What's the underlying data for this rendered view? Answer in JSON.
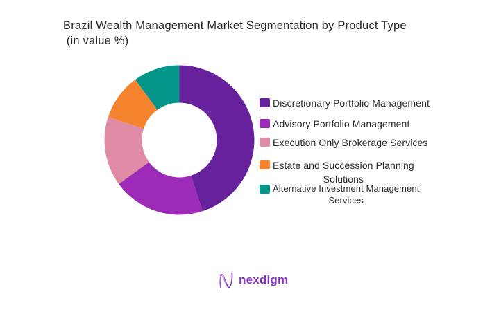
{
  "title": {
    "line1": "Brazil Wealth Management Market Segmentation by Product Type",
    "line2": " (in value %)"
  },
  "chart_data": {
    "type": "pie",
    "subtype": "donut",
    "title": "Brazil Wealth Management Market Segmentation by Product Type (in value %)",
    "unit": "value %",
    "labels": [
      "Discretionary Portfolio Management",
      "Advisory Portfolio Management",
      "Execution Only Brokerage Services",
      "Estate and Succession Planning Solutions",
      "Alternative Investment Management Services"
    ],
    "values": [
      45,
      20,
      15,
      10,
      10
    ],
    "colors": [
      "#67219D",
      "#9E2AB8",
      "#E08CA4",
      "#F5822C",
      "#03948A"
    ],
    "start_angle_deg": 0,
    "direction": "clockwise",
    "inner_radius_ratio": 0.5,
    "legend_position": "right",
    "data_labels": "none"
  },
  "legend": {
    "items": [
      {
        "line1": "Discretionary Portfolio Management",
        "line2": "",
        "color": "#67219D"
      },
      {
        "line1": "Advisory Portfolio Management",
        "line2": "",
        "color": "#9E2AB8"
      },
      {
        "line1": "Execution Only Brokerage Services",
        "line2": "",
        "color": "#E08CA4"
      },
      {
        "line1": "Estate and Succession Planning",
        "line2": "Solutions",
        "color": "#F5822C"
      },
      {
        "line1": "Alternative Investment Management",
        "line2": "Services",
        "color": "#03948A"
      }
    ]
  },
  "footer": {
    "logo_text": "nexdigm",
    "logo_color": "#8B2FC9"
  }
}
